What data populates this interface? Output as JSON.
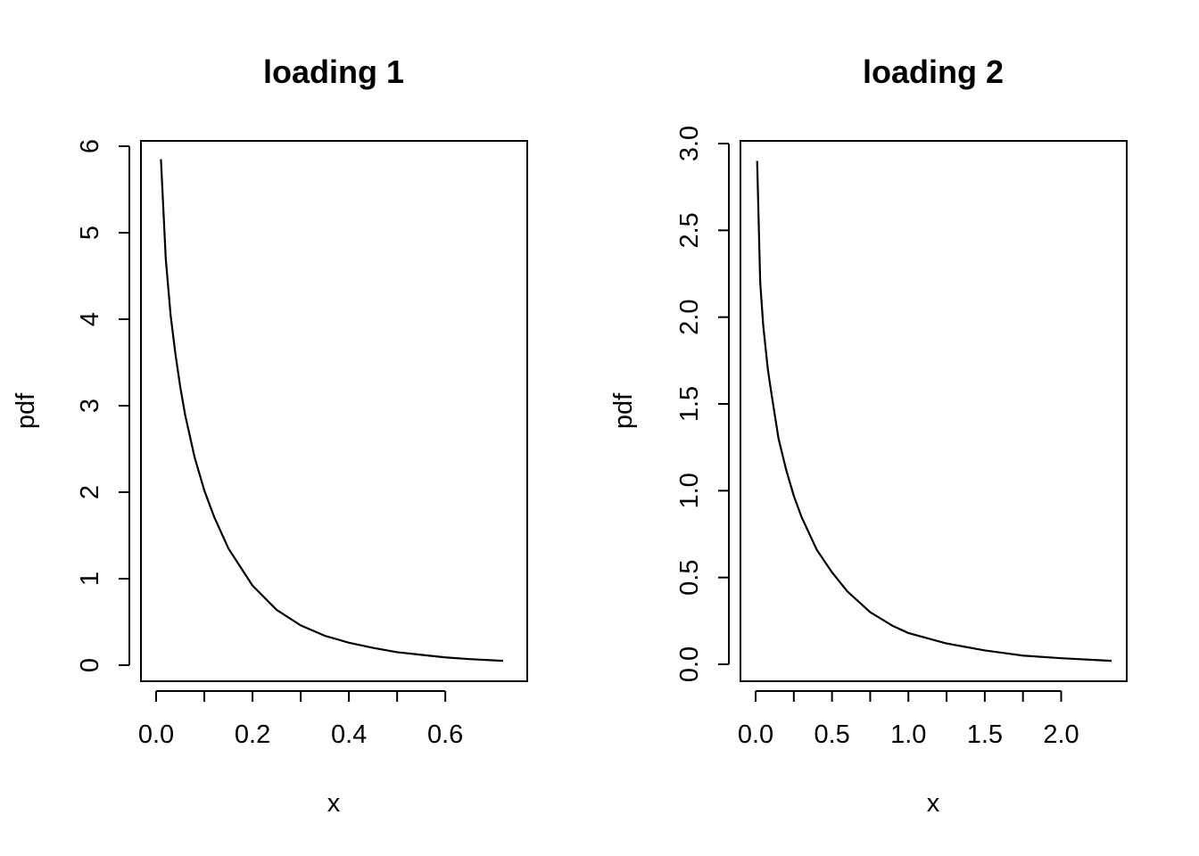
{
  "chart_data": [
    {
      "type": "line",
      "title": "loading 1",
      "xlabel": "x",
      "ylabel": "pdf",
      "xlim": [
        0.0,
        0.72
      ],
      "ylim": [
        0,
        6
      ],
      "xticks": [
        "0.0",
        "0.2",
        "0.4",
        "0.6"
      ],
      "yticks": [
        "0",
        "1",
        "2",
        "3",
        "4",
        "5",
        "6"
      ],
      "grid": false,
      "series": [
        {
          "x": [
            0.01,
            0.02,
            0.03,
            0.04,
            0.05,
            0.06,
            0.08,
            0.1,
            0.12,
            0.15,
            0.2,
            0.25,
            0.3,
            0.35,
            0.4,
            0.45,
            0.5,
            0.55,
            0.6,
            0.65,
            0.72
          ],
          "y": [
            5.85,
            4.7,
            4.05,
            3.6,
            3.22,
            2.9,
            2.4,
            2.02,
            1.72,
            1.35,
            0.92,
            0.64,
            0.46,
            0.34,
            0.26,
            0.2,
            0.15,
            0.12,
            0.09,
            0.07,
            0.05
          ]
        }
      ]
    },
    {
      "type": "line",
      "title": "loading 2",
      "xlabel": "x",
      "ylabel": "pdf",
      "xlim": [
        0.0,
        2.33
      ],
      "ylim": [
        0.0,
        3.0
      ],
      "xticks": [
        "0.0",
        "0.5",
        "1.0",
        "1.5",
        "2.0"
      ],
      "yticks": [
        "0.0",
        "0.5",
        "1.0",
        "1.5",
        "2.0",
        "2.5",
        "3.0"
      ],
      "grid": false,
      "series": [
        {
          "x": [
            0.01,
            0.03,
            0.05,
            0.08,
            0.1,
            0.15,
            0.2,
            0.25,
            0.3,
            0.4,
            0.5,
            0.6,
            0.75,
            0.9,
            1.0,
            1.25,
            1.5,
            1.75,
            2.0,
            2.33
          ],
          "y": [
            2.9,
            2.2,
            1.95,
            1.7,
            1.58,
            1.3,
            1.12,
            0.97,
            0.85,
            0.66,
            0.53,
            0.42,
            0.3,
            0.22,
            0.18,
            0.12,
            0.08,
            0.05,
            0.035,
            0.02
          ]
        }
      ]
    }
  ]
}
